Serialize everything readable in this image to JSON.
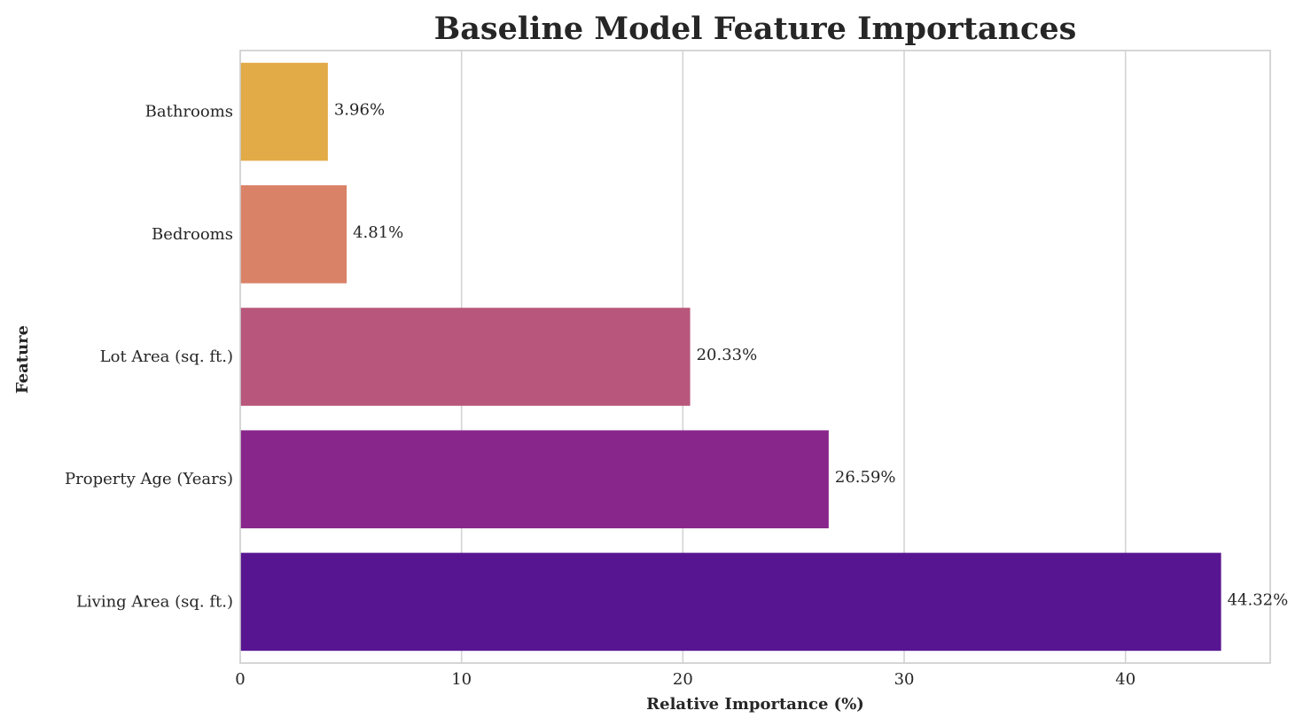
{
  "chart_data": {
    "type": "bar",
    "orientation": "horizontal",
    "title": "Baseline Model Feature Importances",
    "xlabel": "Relative Importance (%)",
    "ylabel": "Feature",
    "categories": [
      "Bathrooms",
      "Bedrooms",
      "Lot Area (sq. ft.)",
      "Property Age (Years)",
      "Living Area (sq. ft.)"
    ],
    "values": [
      3.96,
      4.81,
      20.33,
      26.59,
      44.32
    ],
    "data_labels": [
      "3.96%",
      "4.81%",
      "20.33%",
      "26.59%",
      "44.32%"
    ],
    "bar_colors": [
      "#e3ab47",
      "#da8267",
      "#b8577b",
      "#89268c",
      "#581592"
    ],
    "xlim": [
      0,
      46.54
    ],
    "xticks": [
      0,
      10,
      20,
      30,
      40
    ],
    "xtick_labels": [
      "0",
      "10",
      "20",
      "30",
      "40"
    ],
    "grid": "vertical",
    "legend": "none"
  }
}
